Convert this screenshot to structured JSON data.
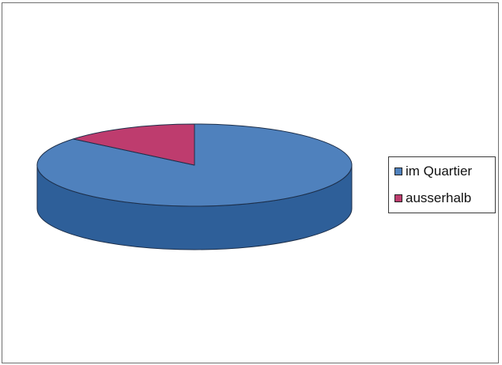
{
  "chart_data": {
    "type": "pie",
    "style": "3d",
    "title": "",
    "legend_position": "right",
    "series": [
      {
        "name": "im Quartier",
        "value": 86,
        "color": "#4f81bd"
      },
      {
        "name": "ausserhalb",
        "value": 14,
        "color": "#be3c6e"
      }
    ],
    "side_color": "#2e5f99"
  }
}
